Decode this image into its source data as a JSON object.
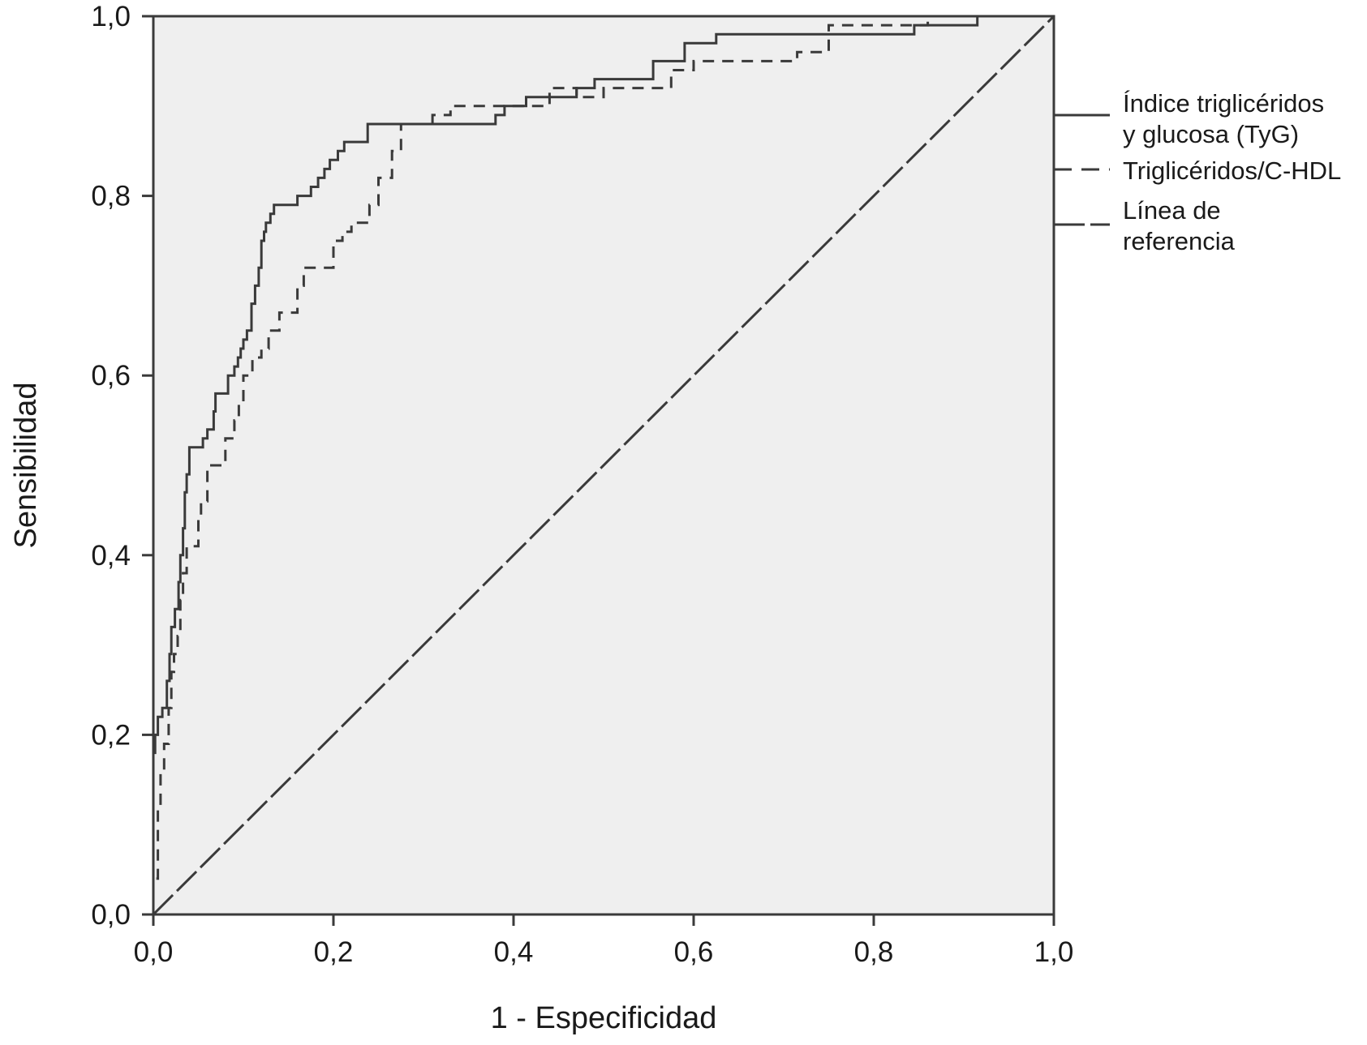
{
  "chart_data": {
    "type": "line",
    "title": "",
    "xlabel": "1 - Especificidad",
    "ylabel": "Sensibilidad",
    "xlim": [
      0,
      1
    ],
    "ylim": [
      0,
      1
    ],
    "x_ticks": [
      "0,0",
      "0,2",
      "0,4",
      "0,6",
      "0,8",
      "1,0"
    ],
    "y_ticks": [
      "0,0",
      "0,2",
      "0,4",
      "0,6",
      "0,8",
      "1,0"
    ],
    "plot_background": "#efefef",
    "line_color": "#3a3a3a",
    "legend_position": "right",
    "series": [
      {
        "name": "Índice triglicéridos y glucosa (TyG)",
        "style": "solid",
        "points": [
          [
            0,
            0
          ],
          [
            0,
            0.18
          ],
          [
            0.002,
            0.18
          ],
          [
            0.002,
            0.2
          ],
          [
            0.005,
            0.2
          ],
          [
            0.005,
            0.22
          ],
          [
            0.01,
            0.22
          ],
          [
            0.01,
            0.23
          ],
          [
            0.015,
            0.23
          ],
          [
            0.015,
            0.26
          ],
          [
            0.018,
            0.26
          ],
          [
            0.018,
            0.29
          ],
          [
            0.02,
            0.29
          ],
          [
            0.02,
            0.32
          ],
          [
            0.024,
            0.32
          ],
          [
            0.024,
            0.34
          ],
          [
            0.028,
            0.34
          ],
          [
            0.028,
            0.37
          ],
          [
            0.03,
            0.37
          ],
          [
            0.03,
            0.4
          ],
          [
            0.033,
            0.4
          ],
          [
            0.033,
            0.43
          ],
          [
            0.035,
            0.43
          ],
          [
            0.035,
            0.47
          ],
          [
            0.037,
            0.47
          ],
          [
            0.037,
            0.49
          ],
          [
            0.04,
            0.49
          ],
          [
            0.04,
            0.52
          ],
          [
            0.055,
            0.52
          ],
          [
            0.055,
            0.53
          ],
          [
            0.06,
            0.53
          ],
          [
            0.06,
            0.54
          ],
          [
            0.067,
            0.54
          ],
          [
            0.067,
            0.56
          ],
          [
            0.069,
            0.56
          ],
          [
            0.069,
            0.58
          ],
          [
            0.083,
            0.58
          ],
          [
            0.083,
            0.6
          ],
          [
            0.09,
            0.6
          ],
          [
            0.09,
            0.61
          ],
          [
            0.094,
            0.61
          ],
          [
            0.094,
            0.62
          ],
          [
            0.097,
            0.62
          ],
          [
            0.097,
            0.63
          ],
          [
            0.1,
            0.63
          ],
          [
            0.1,
            0.64
          ],
          [
            0.104,
            0.64
          ],
          [
            0.104,
            0.65
          ],
          [
            0.109,
            0.65
          ],
          [
            0.109,
            0.68
          ],
          [
            0.113,
            0.68
          ],
          [
            0.113,
            0.7
          ],
          [
            0.117,
            0.7
          ],
          [
            0.117,
            0.72
          ],
          [
            0.12,
            0.72
          ],
          [
            0.12,
            0.75
          ],
          [
            0.123,
            0.75
          ],
          [
            0.123,
            0.76
          ],
          [
            0.125,
            0.76
          ],
          [
            0.125,
            0.77
          ],
          [
            0.13,
            0.77
          ],
          [
            0.13,
            0.78
          ],
          [
            0.134,
            0.78
          ],
          [
            0.134,
            0.79
          ],
          [
            0.16,
            0.79
          ],
          [
            0.16,
            0.8
          ],
          [
            0.175,
            0.8
          ],
          [
            0.175,
            0.81
          ],
          [
            0.183,
            0.81
          ],
          [
            0.183,
            0.82
          ],
          [
            0.19,
            0.82
          ],
          [
            0.19,
            0.83
          ],
          [
            0.196,
            0.83
          ],
          [
            0.196,
            0.84
          ],
          [
            0.205,
            0.84
          ],
          [
            0.205,
            0.85
          ],
          [
            0.212,
            0.85
          ],
          [
            0.212,
            0.86
          ],
          [
            0.238,
            0.86
          ],
          [
            0.238,
            0.88
          ],
          [
            0.38,
            0.88
          ],
          [
            0.38,
            0.89
          ],
          [
            0.39,
            0.89
          ],
          [
            0.39,
            0.9
          ],
          [
            0.414,
            0.9
          ],
          [
            0.414,
            0.91
          ],
          [
            0.47,
            0.91
          ],
          [
            0.47,
            0.92
          ],
          [
            0.49,
            0.92
          ],
          [
            0.49,
            0.93
          ],
          [
            0.555,
            0.93
          ],
          [
            0.555,
            0.95
          ],
          [
            0.59,
            0.95
          ],
          [
            0.59,
            0.97
          ],
          [
            0.625,
            0.97
          ],
          [
            0.625,
            0.98
          ],
          [
            0.845,
            0.98
          ],
          [
            0.845,
            0.99
          ],
          [
            0.915,
            0.99
          ],
          [
            0.915,
            1
          ],
          [
            1,
            1
          ]
        ]
      },
      {
        "name": "Triglicéridos/C-HDL",
        "style": "dashed",
        "points": [
          [
            0,
            0
          ],
          [
            0,
            0.04
          ],
          [
            0.005,
            0.04
          ],
          [
            0.005,
            0.12
          ],
          [
            0.008,
            0.12
          ],
          [
            0.008,
            0.16
          ],
          [
            0.012,
            0.16
          ],
          [
            0.012,
            0.19
          ],
          [
            0.017,
            0.19
          ],
          [
            0.017,
            0.23
          ],
          [
            0.02,
            0.23
          ],
          [
            0.02,
            0.27
          ],
          [
            0.023,
            0.27
          ],
          [
            0.023,
            0.29
          ],
          [
            0.027,
            0.29
          ],
          [
            0.027,
            0.31
          ],
          [
            0.03,
            0.31
          ],
          [
            0.03,
            0.35
          ],
          [
            0.033,
            0.35
          ],
          [
            0.033,
            0.38
          ],
          [
            0.037,
            0.38
          ],
          [
            0.037,
            0.41
          ],
          [
            0.05,
            0.41
          ],
          [
            0.05,
            0.44
          ],
          [
            0.053,
            0.44
          ],
          [
            0.053,
            0.46
          ],
          [
            0.06,
            0.46
          ],
          [
            0.06,
            0.5
          ],
          [
            0.08,
            0.5
          ],
          [
            0.08,
            0.53
          ],
          [
            0.09,
            0.53
          ],
          [
            0.09,
            0.55
          ],
          [
            0.095,
            0.55
          ],
          [
            0.095,
            0.57
          ],
          [
            0.1,
            0.57
          ],
          [
            0.1,
            0.6
          ],
          [
            0.11,
            0.6
          ],
          [
            0.11,
            0.62
          ],
          [
            0.12,
            0.62
          ],
          [
            0.12,
            0.63
          ],
          [
            0.128,
            0.63
          ],
          [
            0.128,
            0.65
          ],
          [
            0.14,
            0.65
          ],
          [
            0.14,
            0.67
          ],
          [
            0.16,
            0.67
          ],
          [
            0.16,
            0.7
          ],
          [
            0.167,
            0.7
          ],
          [
            0.167,
            0.72
          ],
          [
            0.2,
            0.72
          ],
          [
            0.2,
            0.75
          ],
          [
            0.21,
            0.75
          ],
          [
            0.21,
            0.76
          ],
          [
            0.22,
            0.76
          ],
          [
            0.22,
            0.77
          ],
          [
            0.24,
            0.77
          ],
          [
            0.24,
            0.79
          ],
          [
            0.25,
            0.79
          ],
          [
            0.25,
            0.82
          ],
          [
            0.265,
            0.82
          ],
          [
            0.265,
            0.85
          ],
          [
            0.275,
            0.85
          ],
          [
            0.275,
            0.88
          ],
          [
            0.31,
            0.88
          ],
          [
            0.31,
            0.89
          ],
          [
            0.33,
            0.89
          ],
          [
            0.33,
            0.9
          ],
          [
            0.44,
            0.9
          ],
          [
            0.44,
            0.92
          ],
          [
            0.47,
            0.92
          ],
          [
            0.47,
            0.91
          ],
          [
            0.5,
            0.91
          ],
          [
            0.5,
            0.92
          ],
          [
            0.575,
            0.92
          ],
          [
            0.575,
            0.94
          ],
          [
            0.6,
            0.94
          ],
          [
            0.6,
            0.95
          ],
          [
            0.715,
            0.95
          ],
          [
            0.715,
            0.96
          ],
          [
            0.75,
            0.96
          ],
          [
            0.75,
            0.99
          ],
          [
            0.86,
            0.99
          ],
          [
            0.86,
            1
          ],
          [
            1,
            1
          ]
        ]
      },
      {
        "name": "Línea de referencia",
        "style": "long-dash",
        "points": [
          [
            0,
            0
          ],
          [
            1,
            1
          ]
        ]
      }
    ]
  }
}
